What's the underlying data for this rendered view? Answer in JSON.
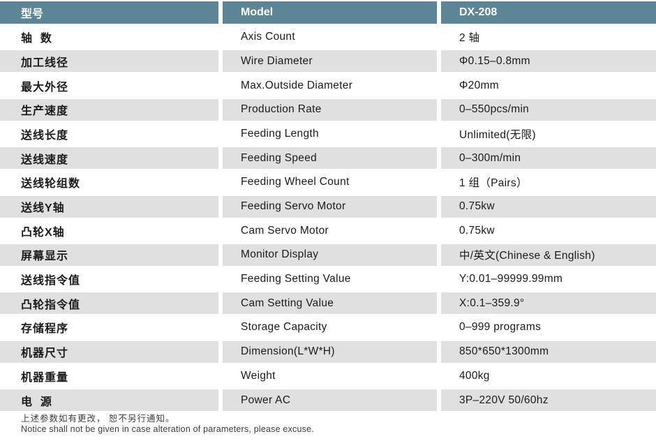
{
  "table": {
    "header": {
      "cn": "型号",
      "en": "Model",
      "value": "DX-208"
    },
    "rows": [
      {
        "cn": "轴  数",
        "en": "Axis Count",
        "value": "2 轴"
      },
      {
        "cn": "加工线径",
        "en": "Wire Diameter",
        "value": "Φ0.15–0.8mm"
      },
      {
        "cn": "最大外径",
        "en": "Max.Outside Diameter",
        "value": "Φ20mm"
      },
      {
        "cn": "生产速度",
        "en": "Production Rate",
        "value": "0–550pcs/min"
      },
      {
        "cn": "送线长度",
        "en": "Feeding Length",
        "value": "Unlimited(无限)"
      },
      {
        "cn": "送线速度",
        "en": "Feeding Speed",
        "value": "0–300m/min"
      },
      {
        "cn": "送线轮组数",
        "en": "Feeding Wheel Count",
        "value": "1 组（Pairs）"
      },
      {
        "cn": "送线Y轴",
        "en": "Feeding Servo Motor",
        "value": "0.75kw"
      },
      {
        "cn": "凸轮X轴",
        "en": "Cam Servo Motor",
        "value": "0.75kw"
      },
      {
        "cn": "屏幕显示",
        "en": "Monitor Display",
        "value": "中/英文(Chinese & English)"
      },
      {
        "cn": "送线指令值",
        "en": "Feeding Setting Value",
        "value": "Y:0.01–99999.99mm"
      },
      {
        "cn": "凸轮指令值",
        "en": "Cam Setting Value",
        "value": "X:0.1–359.9°"
      },
      {
        "cn": "存储程序",
        "en": "Storage Capacity",
        "value": "0–999 programs"
      },
      {
        "cn": "机器尺寸",
        "en": "Dimension(L*W*H)",
        "value": "850*650*1300mm"
      },
      {
        "cn": "机器重量",
        "en": "Weight",
        "value": "400kg"
      },
      {
        "cn": "电  源",
        "en": "Power AC",
        "value": "3P–220V 50/60hz"
      }
    ]
  },
  "footer": {
    "cn": "上述参数如有更改， 恕不另行通知。",
    "en": "Notice shall not be given in case alteration of parameters, please excuse."
  },
  "colors": {
    "header_bg": "#5c8696",
    "alt_row_bg": "#e0e0e0",
    "header_text": "#ffffff",
    "body_text": "#1a1a1a",
    "footer_text": "#3a3f3d",
    "divider": "#ffffff"
  }
}
